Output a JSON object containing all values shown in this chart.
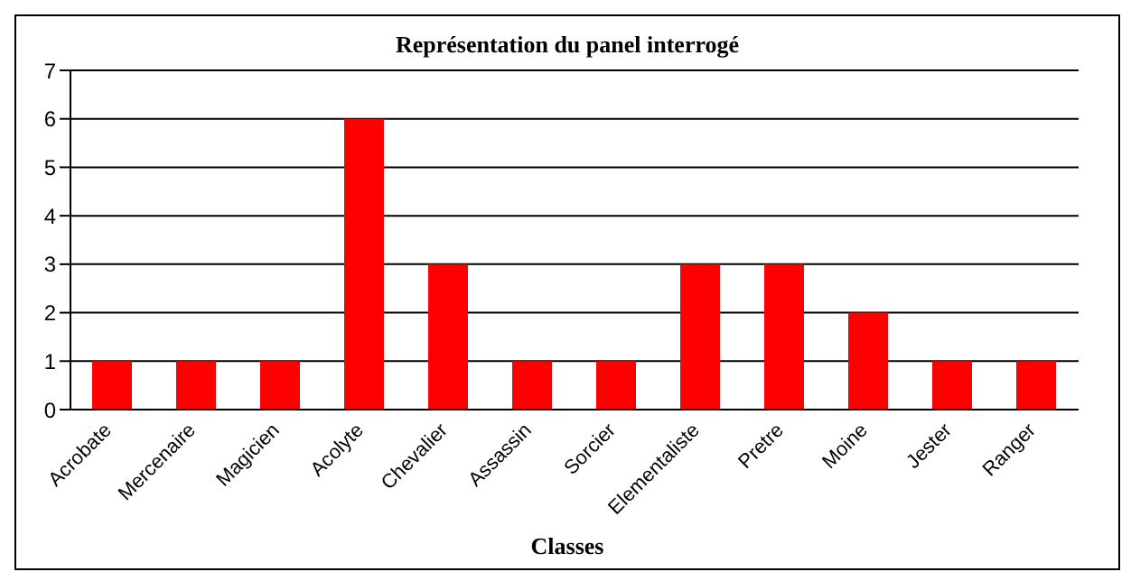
{
  "chart_data": {
    "type": "bar",
    "title": "Représentation du panel interrogé",
    "xlabel": "Classes",
    "categories": [
      "Acrobate",
      "Mercenaire",
      "Magicien",
      "Acolyte",
      "Chevalier",
      "Assassin",
      "Sorcier",
      "Elementaliste",
      "Pretre",
      "Moine",
      "Jester",
      "Ranger"
    ],
    "values": [
      1,
      1,
      1,
      6,
      3,
      1,
      1,
      3,
      3,
      2,
      1,
      1
    ],
    "color": "#ff0000",
    "ylim": [
      0,
      7
    ],
    "yticks": [
      0,
      1,
      2,
      3,
      4,
      5,
      6,
      7
    ],
    "grid": "y"
  }
}
